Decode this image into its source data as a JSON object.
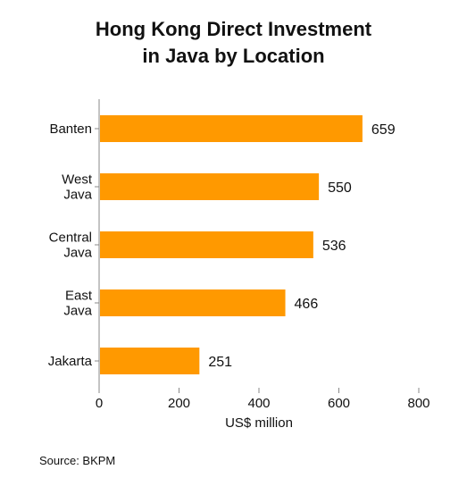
{
  "chart_data": {
    "type": "bar",
    "orientation": "horizontal",
    "title_lines": [
      "Hong Kong Direct Investment",
      "in Java by Location"
    ],
    "categories": [
      [
        "Banten"
      ],
      [
        "West",
        "Java"
      ],
      [
        "Central",
        "Java"
      ],
      [
        "East",
        "Java"
      ],
      [
        "Jakarta"
      ]
    ],
    "values": [
      659,
      550,
      536,
      466,
      251
    ],
    "data_labels": [
      "659",
      "550",
      "536",
      "466",
      "251"
    ],
    "xlabel": "US$ million",
    "xlim": [
      0,
      800
    ],
    "xticks": [
      0,
      200,
      400,
      600,
      800
    ],
    "xtick_labels": [
      "0",
      "200",
      "400",
      "600",
      "800"
    ],
    "bar_color": "#FF9900",
    "axis_color": "#888888",
    "grid": false,
    "legend": "none"
  },
  "source": "Source: BKPM"
}
